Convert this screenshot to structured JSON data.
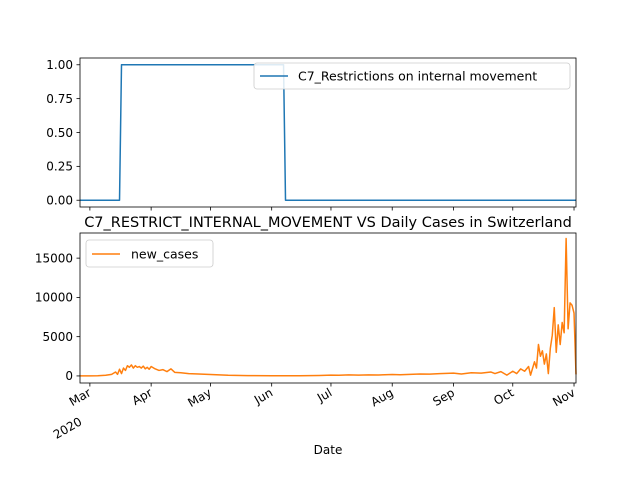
{
  "chart_data": [
    {
      "type": "line",
      "title": "",
      "xlabel": "",
      "ylabel": "",
      "ylim": [
        -0.05,
        1.05
      ],
      "xlim": [
        "2020-02-25",
        "2020-11-02"
      ],
      "yticks": [
        "0.00",
        "0.25",
        "0.50",
        "0.75",
        "1.00"
      ],
      "legend_position": "top-right",
      "series": [
        {
          "name": "C7_Restrictions on internal movement",
          "color": "#1f77b4",
          "points": [
            [
              "2020-02-25",
              0
            ],
            [
              "2020-03-16",
              0
            ],
            [
              "2020-03-17",
              1
            ],
            [
              "2020-06-07",
              1
            ],
            [
              "2020-06-08",
              0
            ],
            [
              "2020-11-02",
              0
            ]
          ]
        }
      ]
    },
    {
      "type": "line",
      "title": "C7_RESTRICT_INTERNAL_MOVEMENT VS Daily Cases in Switzerland",
      "xlabel": "Date",
      "ylabel": "",
      "ylim": [
        -900,
        18200
      ],
      "xlim": [
        "2020-02-25",
        "2020-11-02"
      ],
      "yticks": [
        "0",
        "5000",
        "10000",
        "15000"
      ],
      "xticks": [
        {
          "date": "2020-03-01",
          "label": "Mar",
          "sublabel": "2020"
        },
        {
          "date": "2020-04-01",
          "label": "Apr"
        },
        {
          "date": "2020-05-01",
          "label": "May"
        },
        {
          "date": "2020-06-01",
          "label": "Jun"
        },
        {
          "date": "2020-07-01",
          "label": "Jul"
        },
        {
          "date": "2020-08-01",
          "label": "Aug"
        },
        {
          "date": "2020-09-01",
          "label": "Sep"
        },
        {
          "date": "2020-10-01",
          "label": "Oct"
        },
        {
          "date": "2020-11-01",
          "label": "Nov"
        }
      ],
      "legend_position": "top-left",
      "series": [
        {
          "name": "new_cases",
          "color": "#ff7f0e",
          "points": [
            [
              "2020-02-25",
              1
            ],
            [
              "2020-03-01",
              10
            ],
            [
              "2020-03-05",
              30
            ],
            [
              "2020-03-09",
              80
            ],
            [
              "2020-03-12",
              200
            ],
            [
              "2020-03-14",
              500
            ],
            [
              "2020-03-15",
              200
            ],
            [
              "2020-03-16",
              850
            ],
            [
              "2020-03-17",
              300
            ],
            [
              "2020-03-18",
              1000
            ],
            [
              "2020-03-19",
              700
            ],
            [
              "2020-03-20",
              1300
            ],
            [
              "2020-03-21",
              1100
            ],
            [
              "2020-03-22",
              1400
            ],
            [
              "2020-03-23",
              1000
            ],
            [
              "2020-03-24",
              1300
            ],
            [
              "2020-03-25",
              1100
            ],
            [
              "2020-03-26",
              1200
            ],
            [
              "2020-03-27",
              1000
            ],
            [
              "2020-03-28",
              1250
            ],
            [
              "2020-03-29",
              900
            ],
            [
              "2020-03-30",
              1100
            ],
            [
              "2020-03-31",
              850
            ],
            [
              "2020-04-01",
              1200
            ],
            [
              "2020-04-03",
              900
            ],
            [
              "2020-04-05",
              700
            ],
            [
              "2020-04-07",
              800
            ],
            [
              "2020-04-09",
              550
            ],
            [
              "2020-04-11",
              900
            ],
            [
              "2020-04-13",
              450
            ],
            [
              "2020-04-16",
              400
            ],
            [
              "2020-04-20",
              300
            ],
            [
              "2020-04-25",
              250
            ],
            [
              "2020-05-01",
              180
            ],
            [
              "2020-05-10",
              80
            ],
            [
              "2020-05-20",
              40
            ],
            [
              "2020-06-01",
              20
            ],
            [
              "2020-06-15",
              25
            ],
            [
              "2020-06-25",
              60
            ],
            [
              "2020-07-01",
              100
            ],
            [
              "2020-07-05",
              90
            ],
            [
              "2020-07-10",
              130
            ],
            [
              "2020-07-15",
              100
            ],
            [
              "2020-07-20",
              140
            ],
            [
              "2020-07-25",
              120
            ],
            [
              "2020-08-01",
              180
            ],
            [
              "2020-08-05",
              150
            ],
            [
              "2020-08-10",
              200
            ],
            [
              "2020-08-15",
              250
            ],
            [
              "2020-08-20",
              230
            ],
            [
              "2020-08-25",
              300
            ],
            [
              "2020-09-01",
              350
            ],
            [
              "2020-09-05",
              250
            ],
            [
              "2020-09-10",
              400
            ],
            [
              "2020-09-15",
              350
            ],
            [
              "2020-09-20",
              500
            ],
            [
              "2020-09-22",
              300
            ],
            [
              "2020-09-25",
              550
            ],
            [
              "2020-09-28",
              100
            ],
            [
              "2020-10-01",
              600
            ],
            [
              "2020-10-03",
              300
            ],
            [
              "2020-10-05",
              900
            ],
            [
              "2020-10-07",
              600
            ],
            [
              "2020-10-09",
              1200
            ],
            [
              "2020-10-10",
              100
            ],
            [
              "2020-10-12",
              1800
            ],
            [
              "2020-10-13",
              1000
            ],
            [
              "2020-10-14",
              4000
            ],
            [
              "2020-10-15",
              2500
            ],
            [
              "2020-10-16",
              3200
            ],
            [
              "2020-10-17",
              1500
            ],
            [
              "2020-10-18",
              2800
            ],
            [
              "2020-10-19",
              300
            ],
            [
              "2020-10-20",
              3500
            ],
            [
              "2020-10-21",
              5200
            ],
            [
              "2020-10-22",
              8700
            ],
            [
              "2020-10-23",
              3000
            ],
            [
              "2020-10-24",
              6500
            ],
            [
              "2020-10-25",
              4000
            ],
            [
              "2020-10-26",
              6800
            ],
            [
              "2020-10-27",
              5500
            ],
            [
              "2020-10-28",
              17500
            ],
            [
              "2020-10-29",
              6000
            ],
            [
              "2020-10-30",
              9300
            ],
            [
              "2020-10-31",
              9000
            ],
            [
              "2020-11-01",
              8000
            ],
            [
              "2020-11-02",
              200
            ]
          ]
        }
      ]
    }
  ]
}
